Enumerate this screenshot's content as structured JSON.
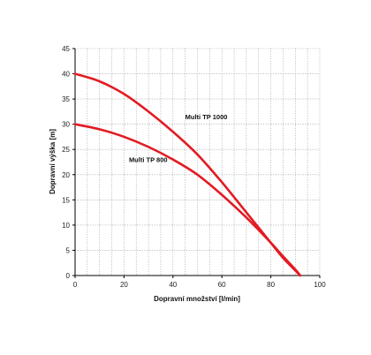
{
  "chart_data": {
    "type": "line",
    "title": "",
    "xlabel": "Dopravní množství [l/min]",
    "ylabel": "Dopravní výška [m]",
    "xlim": [
      0,
      100
    ],
    "ylim": [
      0,
      45
    ],
    "x_ticks": [
      "0",
      "20",
      "40",
      "60",
      "80",
      "100"
    ],
    "y_ticks": [
      "0",
      "5",
      "10",
      "15",
      "20",
      "25",
      "30",
      "35",
      "40",
      "45"
    ],
    "x_minor_step": 5,
    "y_minor_step": 5,
    "grid": true,
    "line_color": "#e31b23",
    "series": [
      {
        "name": "Multi TP 1000",
        "x": [
          0,
          10,
          20,
          30,
          40,
          50,
          60,
          70,
          80,
          85,
          90,
          92
        ],
        "y": [
          40,
          38.5,
          36,
          32.5,
          28.5,
          24,
          18.5,
          12.5,
          6.5,
          3.5,
          1,
          0
        ]
      },
      {
        "name": "Multi TP 800",
        "x": [
          0,
          10,
          20,
          30,
          40,
          50,
          60,
          70,
          80,
          85,
          90,
          92
        ],
        "y": [
          30,
          29,
          27.5,
          25.5,
          23,
          20,
          16,
          11.5,
          6.5,
          3.8,
          1.2,
          0
        ]
      }
    ],
    "annotations": [
      {
        "text": "Multi TP 1000",
        "x": 45,
        "y": 31,
        "series": 0
      },
      {
        "text": "Multi TP 800",
        "x": 22,
        "y": 22.5,
        "series": 1
      }
    ]
  }
}
